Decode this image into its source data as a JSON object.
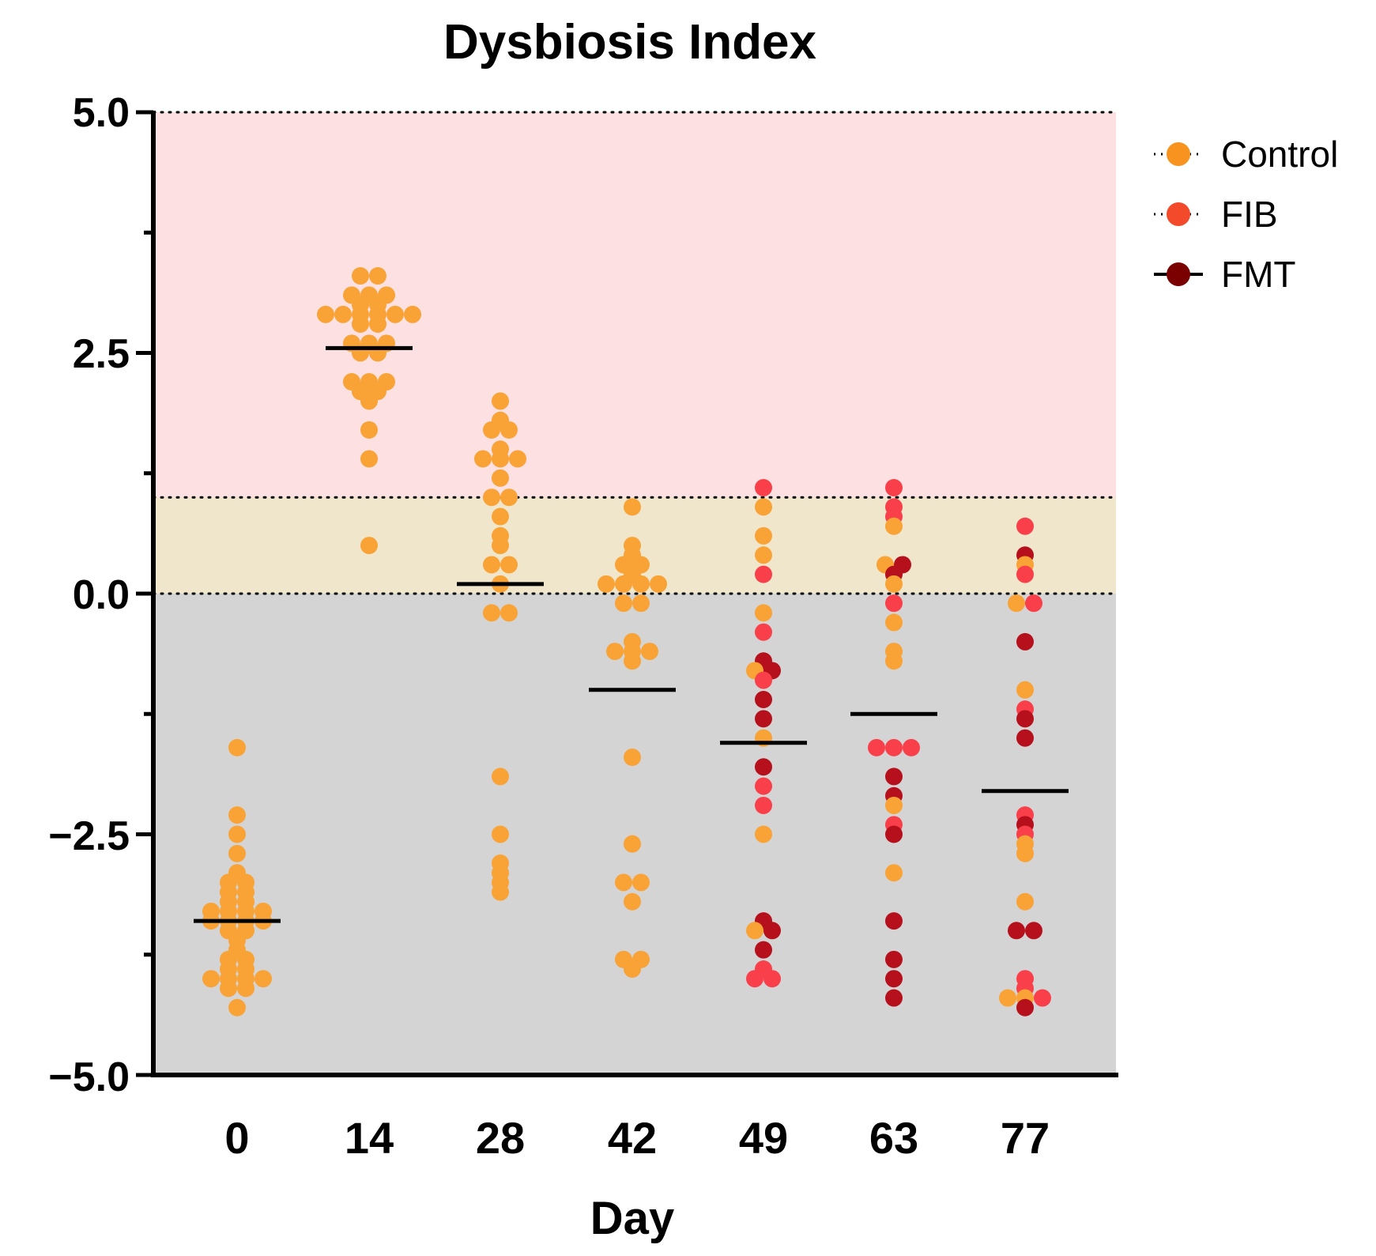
{
  "chart_data": {
    "type": "scatter",
    "title": "Dysbiosis Index",
    "xlabel": "Day",
    "ylabel": "",
    "categories": [
      "0",
      "14",
      "28",
      "42",
      "49",
      "63",
      "77"
    ],
    "y_ticks": [
      "5.0",
      "2.5",
      "0.0",
      "−2.5",
      "−5.0"
    ],
    "ylim": [
      -5,
      5
    ],
    "reference_lines": [
      5,
      1,
      0
    ],
    "bands": [
      {
        "from": 1,
        "to": 5,
        "color": "#fde1e2"
      },
      {
        "from": 0,
        "to": 1,
        "color": "#efe6cc"
      },
      {
        "from": -5,
        "to": 0,
        "color": "#d4d4d4"
      }
    ],
    "legend_position": "top-right",
    "series": [
      {
        "name": "Control",
        "color": "#f9a236",
        "legend_color": "#f7931e"
      },
      {
        "name": "FIB",
        "color": "#f9404a",
        "legend_color": "#f44a2c"
      },
      {
        "name": "FMT",
        "color": "#b5101c",
        "legend_color": "#7a0000"
      }
    ],
    "medians": [
      -3.4,
      2.55,
      0.1,
      -1.0,
      -1.55,
      -1.25,
      -2.05
    ],
    "points": [
      [
        {
          "s": 0,
          "y": -1.6
        },
        {
          "s": 0,
          "y": -2.3
        },
        {
          "s": 0,
          "y": -2.5
        },
        {
          "s": 0,
          "y": -2.7
        },
        {
          "s": 0,
          "y": -2.9
        },
        {
          "s": 0,
          "y": -3.0
        },
        {
          "s": 0,
          "y": -3.0
        },
        {
          "s": 0,
          "y": -3.1
        },
        {
          "s": 0,
          "y": -3.1
        },
        {
          "s": 0,
          "y": -3.2
        },
        {
          "s": 0,
          "y": -3.2
        },
        {
          "s": 0,
          "y": -3.3
        },
        {
          "s": 0,
          "y": -3.3
        },
        {
          "s": 0,
          "y": -3.3
        },
        {
          "s": 0,
          "y": -3.3
        },
        {
          "s": 0,
          "y": -3.4
        },
        {
          "s": 0,
          "y": -3.4
        },
        {
          "s": 0,
          "y": -3.4
        },
        {
          "s": 0,
          "y": -3.4
        },
        {
          "s": 0,
          "y": -3.5
        },
        {
          "s": 0,
          "y": -3.5
        },
        {
          "s": 0,
          "y": -3.6
        },
        {
          "s": 0,
          "y": -3.7
        },
        {
          "s": 0,
          "y": -3.8
        },
        {
          "s": 0,
          "y": -3.8
        },
        {
          "s": 0,
          "y": -3.9
        },
        {
          "s": 0,
          "y": -3.9
        },
        {
          "s": 0,
          "y": -4.0
        },
        {
          "s": 0,
          "y": -4.0
        },
        {
          "s": 0,
          "y": -4.0
        },
        {
          "s": 0,
          "y": -4.0
        },
        {
          "s": 0,
          "y": -4.1
        },
        {
          "s": 0,
          "y": -4.1
        },
        {
          "s": 0,
          "y": -4.3
        }
      ],
      [
        {
          "s": 0,
          "y": 3.3
        },
        {
          "s": 0,
          "y": 3.3
        },
        {
          "s": 0,
          "y": 3.1
        },
        {
          "s": 0,
          "y": 3.1
        },
        {
          "s": 0,
          "y": 3.1
        },
        {
          "s": 0,
          "y": 3.0
        },
        {
          "s": 0,
          "y": 3.0
        },
        {
          "s": 0,
          "y": 2.9
        },
        {
          "s": 0,
          "y": 2.9
        },
        {
          "s": 0,
          "y": 2.9
        },
        {
          "s": 0,
          "y": 2.9
        },
        {
          "s": 0,
          "y": 2.9
        },
        {
          "s": 0,
          "y": 2.9
        },
        {
          "s": 0,
          "y": 2.8
        },
        {
          "s": 0,
          "y": 2.8
        },
        {
          "s": 0,
          "y": 2.6
        },
        {
          "s": 0,
          "y": 2.6
        },
        {
          "s": 0,
          "y": 2.6
        },
        {
          "s": 0,
          "y": 2.5
        },
        {
          "s": 0,
          "y": 2.5
        },
        {
          "s": 0,
          "y": 2.2
        },
        {
          "s": 0,
          "y": 2.2
        },
        {
          "s": 0,
          "y": 2.2
        },
        {
          "s": 0,
          "y": 2.1
        },
        {
          "s": 0,
          "y": 2.1
        },
        {
          "s": 0,
          "y": 2.0
        },
        {
          "s": 0,
          "y": 1.7
        },
        {
          "s": 0,
          "y": 1.4
        },
        {
          "s": 0,
          "y": 0.5
        }
      ],
      [
        {
          "s": 0,
          "y": 2.0
        },
        {
          "s": 0,
          "y": 1.8
        },
        {
          "s": 0,
          "y": 1.7
        },
        {
          "s": 0,
          "y": 1.7
        },
        {
          "s": 0,
          "y": 1.5
        },
        {
          "s": 0,
          "y": 1.4
        },
        {
          "s": 0,
          "y": 1.4
        },
        {
          "s": 0,
          "y": 1.4
        },
        {
          "s": 0,
          "y": 1.2
        },
        {
          "s": 0,
          "y": 1.0
        },
        {
          "s": 0,
          "y": 1.0
        },
        {
          "s": 0,
          "y": 0.8
        },
        {
          "s": 0,
          "y": 0.6
        },
        {
          "s": 0,
          "y": 0.5
        },
        {
          "s": 0,
          "y": 0.3
        },
        {
          "s": 0,
          "y": 0.3
        },
        {
          "s": 0,
          "y": 0.1
        },
        {
          "s": 0,
          "y": -0.2
        },
        {
          "s": 0,
          "y": -0.2
        },
        {
          "s": 0,
          "y": -1.9
        },
        {
          "s": 0,
          "y": -2.5
        },
        {
          "s": 0,
          "y": -2.8
        },
        {
          "s": 0,
          "y": -2.9
        },
        {
          "s": 0,
          "y": -3.0
        },
        {
          "s": 0,
          "y": -3.1
        }
      ],
      [
        {
          "s": 0,
          "y": 0.9
        },
        {
          "s": 0,
          "y": 0.5
        },
        {
          "s": 0,
          "y": 0.4
        },
        {
          "s": 0,
          "y": 0.3
        },
        {
          "s": 0,
          "y": 0.3
        },
        {
          "s": 0,
          "y": 0.2
        },
        {
          "s": 0,
          "y": 0.1
        },
        {
          "s": 0,
          "y": 0.1
        },
        {
          "s": 0,
          "y": 0.1
        },
        {
          "s": 0,
          "y": 0.1
        },
        {
          "s": 0,
          "y": -0.1
        },
        {
          "s": 0,
          "y": -0.1
        },
        {
          "s": 0,
          "y": -0.5
        },
        {
          "s": 0,
          "y": -0.6
        },
        {
          "s": 0,
          "y": -0.6
        },
        {
          "s": 0,
          "y": -0.6
        },
        {
          "s": 0,
          "y": -0.7
        },
        {
          "s": 0,
          "y": -1.7
        },
        {
          "s": 0,
          "y": -2.6
        },
        {
          "s": 0,
          "y": -3.0
        },
        {
          "s": 0,
          "y": -3.0
        },
        {
          "s": 0,
          "y": -3.2
        },
        {
          "s": 0,
          "y": -3.8
        },
        {
          "s": 0,
          "y": -3.8
        },
        {
          "s": 0,
          "y": -3.9
        }
      ],
      [
        {
          "s": 1,
          "y": 1.1
        },
        {
          "s": 0,
          "y": 0.9
        },
        {
          "s": 0,
          "y": 0.6
        },
        {
          "s": 0,
          "y": 0.4
        },
        {
          "s": 1,
          "y": 0.2
        },
        {
          "s": 0,
          "y": -0.2
        },
        {
          "s": 1,
          "y": -0.4
        },
        {
          "s": 2,
          "y": -0.7
        },
        {
          "s": 0,
          "y": -0.8
        },
        {
          "s": 2,
          "y": -0.8
        },
        {
          "s": 1,
          "y": -0.9
        },
        {
          "s": 2,
          "y": -1.1
        },
        {
          "s": 2,
          "y": -1.3
        },
        {
          "s": 0,
          "y": -1.5
        },
        {
          "s": 2,
          "y": -1.8
        },
        {
          "s": 1,
          "y": -2.0
        },
        {
          "s": 1,
          "y": -2.2
        },
        {
          "s": 0,
          "y": -2.5
        },
        {
          "s": 2,
          "y": -3.4
        },
        {
          "s": 0,
          "y": -3.5
        },
        {
          "s": 2,
          "y": -3.5
        },
        {
          "s": 2,
          "y": -3.7
        },
        {
          "s": 1,
          "y": -3.9
        },
        {
          "s": 1,
          "y": -4.0
        },
        {
          "s": 1,
          "y": -4.0
        }
      ],
      [
        {
          "s": 1,
          "y": 1.1
        },
        {
          "s": 1,
          "y": 0.9
        },
        {
          "s": 1,
          "y": 0.8
        },
        {
          "s": 0,
          "y": 0.7
        },
        {
          "s": 0,
          "y": 0.3
        },
        {
          "s": 2,
          "y": 0.3
        },
        {
          "s": 2,
          "y": 0.2
        },
        {
          "s": 0,
          "y": 0.1
        },
        {
          "s": 1,
          "y": -0.1
        },
        {
          "s": 0,
          "y": -0.3
        },
        {
          "s": 0,
          "y": -0.6
        },
        {
          "s": 0,
          "y": -0.7
        },
        {
          "s": 1,
          "y": -1.6
        },
        {
          "s": 1,
          "y": -1.6
        },
        {
          "s": 1,
          "y": -1.6
        },
        {
          "s": 2,
          "y": -1.9
        },
        {
          "s": 2,
          "y": -2.1
        },
        {
          "s": 0,
          "y": -2.2
        },
        {
          "s": 1,
          "y": -2.4
        },
        {
          "s": 2,
          "y": -2.5
        },
        {
          "s": 0,
          "y": -2.9
        },
        {
          "s": 2,
          "y": -3.4
        },
        {
          "s": 2,
          "y": -3.8
        },
        {
          "s": 2,
          "y": -4.0
        },
        {
          "s": 2,
          "y": -4.2
        }
      ],
      [
        {
          "s": 1,
          "y": 0.7
        },
        {
          "s": 2,
          "y": 0.4
        },
        {
          "s": 0,
          "y": 0.3
        },
        {
          "s": 1,
          "y": 0.2
        },
        {
          "s": 0,
          "y": -0.1
        },
        {
          "s": 1,
          "y": -0.1
        },
        {
          "s": 2,
          "y": -0.5
        },
        {
          "s": 0,
          "y": -1.0
        },
        {
          "s": 1,
          "y": -1.2
        },
        {
          "s": 2,
          "y": -1.3
        },
        {
          "s": 2,
          "y": -1.5
        },
        {
          "s": 1,
          "y": -2.3
        },
        {
          "s": 2,
          "y": -2.4
        },
        {
          "s": 1,
          "y": -2.5
        },
        {
          "s": 0,
          "y": -2.6
        },
        {
          "s": 0,
          "y": -2.7
        },
        {
          "s": 0,
          "y": -3.2
        },
        {
          "s": 2,
          "y": -3.5
        },
        {
          "s": 2,
          "y": -3.5
        },
        {
          "s": 1,
          "y": -4.0
        },
        {
          "s": 1,
          "y": -4.1
        },
        {
          "s": 0,
          "y": -4.2
        },
        {
          "s": 0,
          "y": -4.2
        },
        {
          "s": 1,
          "y": -4.2
        },
        {
          "s": 2,
          "y": -4.3
        }
      ]
    ]
  }
}
